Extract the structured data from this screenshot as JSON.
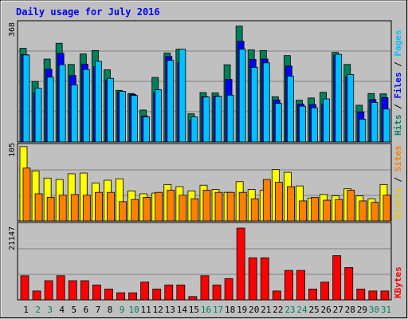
{
  "title": "Daily usage for July 2016",
  "colors": {
    "background": "#c0c0c0",
    "plot_bg": "#c0c0c0",
    "title": "#0000ff",
    "hits": "#00805c",
    "files": "#0000ff",
    "pages": "#00c0ff",
    "visits": "#ffff00",
    "sites": "#ff8000",
    "kbytes": "#ff0000",
    "weekend_day": "#00805c",
    "weekday": "#000000"
  },
  "panel_labels": {
    "top": {
      "pages": "Pages",
      "files": "Files",
      "hits": "Hits",
      "sep": " / "
    },
    "middle": {
      "sites": "Sites",
      "visits": "Visits",
      "sep": " / "
    },
    "bottom": {
      "kbytes": "KBytes"
    }
  },
  "chart_data": [
    {
      "type": "bar",
      "panel": "hits-files-pages",
      "ymax_label": "368",
      "ylim": [
        0,
        368
      ],
      "categories": [
        "1",
        "2",
        "3",
        "4",
        "5",
        "6",
        "7",
        "8",
        "9",
        "10",
        "11",
        "12",
        "13",
        "14",
        "15",
        "16",
        "17",
        "18",
        "19",
        "20",
        "21",
        "22",
        "23",
        "24",
        "25",
        "26",
        "27",
        "28",
        "29",
        "30",
        "31"
      ],
      "weekend": [
        "2",
        "3",
        "9",
        "10",
        "16",
        "17",
        "23",
        "24",
        "30",
        "31"
      ],
      "series": [
        {
          "name": "Hits",
          "values": [
            296,
            191,
            262,
            312,
            245,
            278,
            289,
            228,
            163,
            153,
            101,
            204,
            281,
            293,
            89,
            156,
            155,
            244,
            366,
            291,
            289,
            143,
            273,
            132,
            139,
            157,
            283,
            245,
            116,
            153,
            152
          ]
        },
        {
          "name": "Files",
          "values": [
            276,
            156,
            230,
            280,
            210,
            246,
            237,
            196,
            156,
            150,
            82,
            156,
            270,
            250,
            69,
            143,
            145,
            198,
            318,
            261,
            262,
            132,
            240,
            120,
            118,
            120,
            274,
            206,
            95,
            134,
            140
          ]
        },
        {
          "name": "Pages",
          "values": [
            275,
            170,
            205,
            244,
            180,
            229,
            255,
            201,
            160,
            147,
            79,
            165,
            258,
            293,
            79,
            142,
            144,
            148,
            293,
            236,
            250,
            122,
            208,
            113,
            108,
            136,
            277,
            213,
            72,
            125,
            104
          ]
        }
      ]
    },
    {
      "type": "bar",
      "panel": "visits-sites",
      "ymax_label": "105",
      "ylim": [
        0,
        105
      ],
      "categories": [
        "1",
        "2",
        "3",
        "4",
        "5",
        "6",
        "7",
        "8",
        "9",
        "10",
        "11",
        "12",
        "13",
        "14",
        "15",
        "16",
        "17",
        "18",
        "19",
        "20",
        "21",
        "22",
        "23",
        "24",
        "25",
        "26",
        "27",
        "28",
        "29",
        "30",
        "31"
      ],
      "series": [
        {
          "name": "Visits",
          "values": [
            104,
            70,
            60,
            58,
            66,
            67,
            53,
            57,
            59,
            42,
            38,
            39,
            51,
            48,
            42,
            50,
            44,
            40,
            55,
            44,
            43,
            72,
            68,
            49,
            32,
            37,
            35,
            45,
            35,
            31,
            51
          ]
        },
        {
          "name": "Sites",
          "values": [
            74,
            38,
            33,
            36,
            37,
            36,
            40,
            40,
            27,
            30,
            33,
            40,
            43,
            36,
            31,
            43,
            40,
            40,
            40,
            31,
            58,
            54,
            48,
            28,
            33,
            29,
            30,
            43,
            28,
            26,
            36
          ]
        }
      ]
    },
    {
      "type": "bar",
      "panel": "kbytes",
      "ymax_label": "21147",
      "ylim": [
        0,
        21147
      ],
      "categories": [
        "1",
        "2",
        "3",
        "4",
        "5",
        "6",
        "7",
        "8",
        "9",
        "10",
        "11",
        "12",
        "13",
        "14",
        "15",
        "16",
        "17",
        "18",
        "19",
        "20",
        "21",
        "22",
        "23",
        "24",
        "25",
        "26",
        "27",
        "28",
        "29",
        "30",
        "31"
      ],
      "series": [
        {
          "name": "KBytes",
          "values": [
            7101,
            2611,
            5641,
            7101,
            5641,
            5641,
            4389,
            3180,
            2091,
            2091,
            5224,
            3180,
            4389,
            4389,
            988,
            7101,
            4389,
            6265,
            21147,
            12394,
            12394,
            2611,
            8666,
            8666,
            3180,
            5224,
            13020,
            9527,
            3180,
            2611,
            2611
          ]
        }
      ]
    }
  ]
}
